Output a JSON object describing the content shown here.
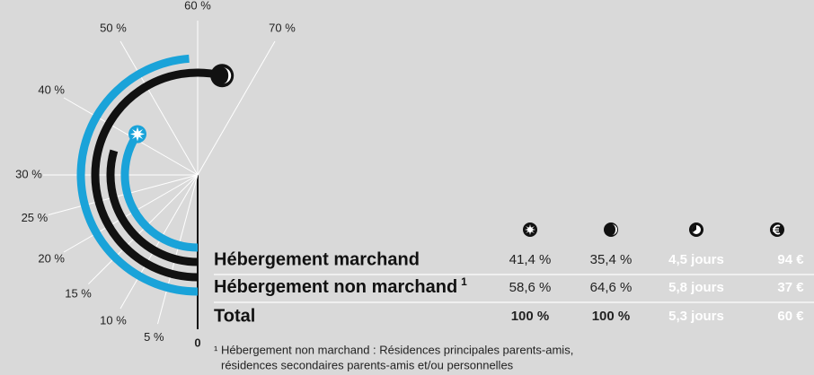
{
  "chart_data": {
    "type": "radial-bar",
    "categories": [
      "Hébergement marchand",
      "Hébergement non marchand"
    ],
    "series": [
      {
        "color": "#1aa3d9",
        "values": [
          41.4,
          58.6
        ],
        "value_labels": [
          "41,4 %",
          "58,6 %"
        ]
      },
      {
        "color": "#111111",
        "values": [
          35.4,
          64.6
        ],
        "value_labels": [
          "35,4 %",
          "64,6 %"
        ]
      }
    ],
    "ylim": [
      0,
      120
    ],
    "yticks": [
      0,
      {
        "value": 5,
        "label": "5 %"
      },
      {
        "value": 10,
        "label": "10 %"
      },
      {
        "value": 15,
        "label": "15 %"
      },
      {
        "value": 20,
        "label": "20 %"
      },
      {
        "value": 25,
        "label": "25 %"
      },
      {
        "value": 30,
        "label": "30 %"
      },
      {
        "value": 40,
        "label": "40 %"
      },
      {
        "value": 50,
        "label": "50 %"
      },
      {
        "value": 60,
        "label": "60 %"
      },
      {
        "value": 70,
        "label": "70 %"
      }
    ]
  },
  "table": {
    "row_superscript": "1",
    "rows": [
      [
        "4,5 jours",
        "94 €"
      ],
      [
        "5,8 jours",
        "37 €"
      ]
    ],
    "total": [
      "Total",
      "100 %",
      "100 %",
      "5,3 jours",
      "60 €"
    ]
  },
  "footnote": [
    "¹ Hébergement non marchand : Résidences principales parents-amis,",
    "résidences secondaires parents-amis et/ou personnelles"
  ]
}
